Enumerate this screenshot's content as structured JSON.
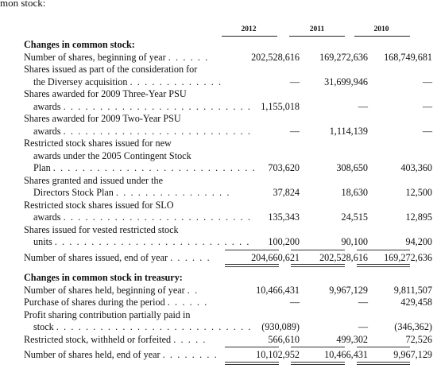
{
  "intro_text": "mon stock:",
  "years": [
    "2012",
    "2011",
    "2010"
  ],
  "common_stock": {
    "heading": "Changes in common stock:",
    "rows": [
      {
        "lines": [
          "Number of shares, beginning of year"
        ],
        "dots": ". . . . . .",
        "values": [
          "202,528,616",
          "169,272,636",
          "168,749,681"
        ]
      },
      {
        "lines": [
          "Shares issued as part of the consideration for",
          "the Diversey acquisition"
        ],
        "dots": ". . . . . . . . . . . . .",
        "values": [
          "—",
          "31,699,946",
          "—"
        ]
      },
      {
        "lines": [
          "Shares awarded for 2009 Three-Year PSU",
          "awards"
        ],
        "dots": ". . . . . . . . . . . . . . . . . . . . . . . . . .",
        "values": [
          "1,155,018",
          "—",
          "—"
        ]
      },
      {
        "lines": [
          "Shares awarded for 2009 Two-Year PSU",
          "awards"
        ],
        "dots": ". . . . . . . . . . . . . . . . . . . . . . . . . .",
        "values": [
          "—",
          "1,114,139",
          "—"
        ]
      },
      {
        "lines": [
          "Restricted stock shares issued for new",
          "awards under the 2005 Contingent Stock",
          "Plan"
        ],
        "dots": ". . . . . . . . . . . . . . . . . . . . . . . . . . . .",
        "values": [
          "703,620",
          "308,650",
          "403,360"
        ]
      },
      {
        "lines": [
          "Shares granted and issued under the",
          "Directors Stock Plan"
        ],
        "dots": ". . . . . . . . . . . . . . . .",
        "values": [
          "37,824",
          "18,630",
          "12,500"
        ]
      },
      {
        "lines": [
          "Restricted stock shares issued for SLO",
          "awards"
        ],
        "dots": ". . . . . . . . . . . . . . . . . . . . . . . . . .",
        "values": [
          "135,343",
          "24,515",
          "12,895"
        ]
      },
      {
        "lines": [
          "Shares issued for vested restricted stock",
          "units"
        ],
        "dots": ". . . . . . . . . . . . . . . . . . . . . . . . . . .",
        "values": [
          "100,200",
          "90,100",
          "94,200"
        ]
      }
    ],
    "total": {
      "label": "Number of shares issued, end of year",
      "dots": ". . . . . .",
      "values": [
        "204,660,621",
        "202,528,616",
        "169,272,636"
      ]
    }
  },
  "treasury": {
    "heading": "Changes in common stock in treasury:",
    "rows": [
      {
        "lines": [
          "Number of shares held, beginning of year"
        ],
        "dots": ". .",
        "values": [
          "10,466,431",
          "9,967,129",
          "9,811,507"
        ]
      },
      {
        "lines": [
          "Purchase of shares during the period"
        ],
        "dots": ". . . . . .",
        "values": [
          "—",
          "—",
          "429,458"
        ]
      },
      {
        "lines": [
          "Profit sharing contribution partially paid in",
          "stock"
        ],
        "dots": ". . . . . . . . . . . . . . . . . . . . . . . . . . .",
        "values": [
          "(930,089)",
          "—",
          "(346,362)"
        ]
      },
      {
        "lines": [
          "Restricted stock, withheld or forfeited"
        ],
        "dots": ". . . . .",
        "values": [
          "566,610",
          "499,302",
          "72,526"
        ]
      }
    ],
    "total": {
      "label": "Number of shares held, end of year",
      "dots": ". . . . . . . .",
      "values": [
        "10,102,952",
        "10,466,431",
        "9,967,129"
      ]
    }
  }
}
